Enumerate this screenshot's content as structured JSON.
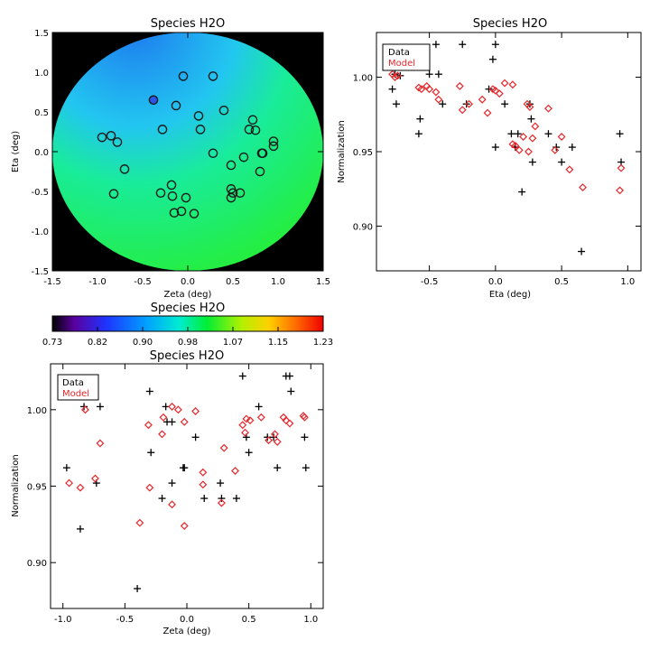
{
  "chart_data": [
    {
      "id": "map",
      "type": "scatter",
      "title": "Species H2O",
      "xlabel": "Zeta (deg)",
      "ylabel": "Eta (deg)",
      "xlim": [
        -1.5,
        1.5
      ],
      "ylim": [
        -1.5,
        1.5
      ],
      "xticks": [
        "-1.5",
        "-1.0",
        "-0.5",
        "0.0",
        "0.5",
        "1.0",
        "1.5"
      ],
      "yticks": [
        "-1.5",
        "-1.0",
        "-0.5",
        "0.0",
        "0.5",
        "1.0",
        "1.5"
      ],
      "background": "model normalization field, circular, blue (top-left) to green (bottom)",
      "points": [
        [
          -0.38,
          0.65
        ],
        [
          -0.05,
          0.95
        ],
        [
          0.28,
          0.95
        ],
        [
          -0.13,
          0.58
        ],
        [
          0.12,
          0.45
        ],
        [
          0.4,
          0.52
        ],
        [
          0.72,
          0.4
        ],
        [
          0.68,
          0.28
        ],
        [
          0.75,
          0.27
        ],
        [
          0.14,
          0.28
        ],
        [
          -0.28,
          0.28
        ],
        [
          -0.85,
          0.2
        ],
        [
          -0.95,
          0.18
        ],
        [
          -0.78,
          0.12
        ],
        [
          0.95,
          0.13
        ],
        [
          0.95,
          0.07
        ],
        [
          0.62,
          -0.07
        ],
        [
          0.48,
          -0.17
        ],
        [
          0.28,
          -0.02
        ],
        [
          0.83,
          -0.02
        ],
        [
          0.82,
          -0.02
        ],
        [
          0.8,
          -0.25
        ],
        [
          -0.7,
          -0.22
        ],
        [
          -0.18,
          -0.42
        ],
        [
          -0.3,
          -0.52
        ],
        [
          -0.17,
          -0.56
        ],
        [
          0.48,
          -0.47
        ],
        [
          0.5,
          -0.52
        ],
        [
          0.58,
          -0.52
        ],
        [
          0.48,
          -0.58
        ],
        [
          -0.82,
          -0.53
        ],
        [
          -0.02,
          -0.58
        ],
        [
          -0.15,
          -0.77
        ],
        [
          -0.07,
          -0.75
        ],
        [
          0.07,
          -0.78
        ]
      ],
      "colorbar": {
        "title": "Species H2O",
        "min": 0.73,
        "max": 1.23,
        "ticks": [
          "0.73",
          "0.82",
          "0.90",
          "0.98",
          "1.07",
          "1.15",
          "1.23"
        ]
      }
    },
    {
      "id": "eta-plot",
      "type": "scatter",
      "title": "Species H2O",
      "xlabel": "Eta (deg)",
      "ylabel": "Normalization",
      "xlim": [
        -0.9,
        1.1
      ],
      "ylim": [
        0.87,
        1.03
      ],
      "xticks": [
        -0.5,
        0.0,
        0.5,
        1.0
      ],
      "yticks": [
        0.9,
        0.95,
        1.0
      ],
      "legend": {
        "position": "top-left",
        "data": "Data",
        "model": "Model"
      },
      "series": [
        {
          "name": "Data",
          "marker": "+",
          "color": "#000000",
          "points": [
            [
              -0.78,
              0.992
            ],
            [
              -0.76,
              1.002
            ],
            [
              -0.75,
              0.982
            ],
            [
              -0.72,
              1.001
            ],
            [
              -0.58,
              0.962
            ],
            [
              -0.57,
              0.972
            ],
            [
              -0.54,
              1.012
            ],
            [
              -0.5,
              1.002
            ],
            [
              -0.45,
              1.022
            ],
            [
              -0.43,
              1.002
            ],
            [
              -0.4,
              0.982
            ],
            [
              -0.25,
              1.022
            ],
            [
              -0.22,
              0.982
            ],
            [
              -0.05,
              0.992
            ],
            [
              -0.02,
              1.012
            ],
            [
              0.0,
              1.022
            ],
            [
              0.0,
              0.953
            ],
            [
              0.07,
              0.982
            ],
            [
              0.12,
              0.962
            ],
            [
              0.15,
              0.953
            ],
            [
              0.17,
              0.962
            ],
            [
              0.2,
              0.923
            ],
            [
              0.26,
              0.982
            ],
            [
              0.27,
              0.972
            ],
            [
              0.28,
              0.943
            ],
            [
              0.4,
              0.962
            ],
            [
              0.46,
              0.953
            ],
            [
              0.5,
              0.943
            ],
            [
              0.58,
              0.953
            ],
            [
              0.65,
              0.883
            ],
            [
              0.94,
              0.962
            ],
            [
              0.95,
              0.943
            ]
          ]
        },
        {
          "name": "Model",
          "marker": "diamond",
          "color": "#e8262a",
          "points": [
            [
              -0.78,
              1.002
            ],
            [
              -0.76,
              1.0
            ],
            [
              -0.74,
              1.001
            ],
            [
              -0.58,
              0.993
            ],
            [
              -0.56,
              0.992
            ],
            [
              -0.52,
              0.994
            ],
            [
              -0.5,
              0.992
            ],
            [
              -0.45,
              0.99
            ],
            [
              -0.43,
              0.985
            ],
            [
              -0.27,
              0.994
            ],
            [
              -0.25,
              0.978
            ],
            [
              -0.2,
              0.982
            ],
            [
              -0.1,
              0.985
            ],
            [
              -0.06,
              0.976
            ],
            [
              -0.02,
              0.992
            ],
            [
              0.0,
              0.991
            ],
            [
              0.03,
              0.989
            ],
            [
              0.07,
              0.996
            ],
            [
              0.13,
              0.995
            ],
            [
              0.13,
              0.955
            ],
            [
              0.15,
              0.954
            ],
            [
              0.18,
              0.951
            ],
            [
              0.21,
              0.96
            ],
            [
              0.24,
              0.982
            ],
            [
              0.25,
              0.95
            ],
            [
              0.26,
              0.98
            ],
            [
              0.28,
              0.959
            ],
            [
              0.3,
              0.967
            ],
            [
              0.4,
              0.979
            ],
            [
              0.45,
              0.951
            ],
            [
              0.5,
              0.96
            ],
            [
              0.56,
              0.938
            ],
            [
              0.66,
              0.926
            ],
            [
              0.94,
              0.924
            ],
            [
              0.95,
              0.939
            ]
          ]
        }
      ]
    },
    {
      "id": "zeta-plot",
      "type": "scatter",
      "title": "Species H2O",
      "xlabel": "Zeta (deg)",
      "ylabel": "Normalization",
      "xlim": [
        -1.1,
        1.1
      ],
      "ylim": [
        0.87,
        1.03
      ],
      "xticks": [
        -1.0,
        -0.5,
        0.0,
        0.5,
        1.0
      ],
      "yticks": [
        0.9,
        0.95,
        1.0
      ],
      "legend": {
        "position": "top-left",
        "data": "Data",
        "model": "Model"
      },
      "series": [
        {
          "name": "Data",
          "marker": "+",
          "color": "#000000",
          "points": [
            [
              -0.97,
              0.962
            ],
            [
              -0.86,
              0.922
            ],
            [
              -0.83,
              1.002
            ],
            [
              -0.73,
              0.952
            ],
            [
              -0.7,
              1.002
            ],
            [
              -0.4,
              0.883
            ],
            [
              -0.3,
              1.012
            ],
            [
              -0.29,
              0.972
            ],
            [
              -0.2,
              0.942
            ],
            [
              -0.17,
              1.002
            ],
            [
              -0.16,
              0.992
            ],
            [
              -0.12,
              0.952
            ],
            [
              -0.12,
              0.992
            ],
            [
              -0.03,
              0.962
            ],
            [
              -0.02,
              0.962
            ],
            [
              0.07,
              0.982
            ],
            [
              0.14,
              0.942
            ],
            [
              0.27,
              0.952
            ],
            [
              0.28,
              0.942
            ],
            [
              0.4,
              0.942
            ],
            [
              0.45,
              1.022
            ],
            [
              0.48,
              0.982
            ],
            [
              0.5,
              0.972
            ],
            [
              0.58,
              1.002
            ],
            [
              0.65,
              0.982
            ],
            [
              0.7,
              0.982
            ],
            [
              0.73,
              0.962
            ],
            [
              0.8,
              1.022
            ],
            [
              0.83,
              1.022
            ],
            [
              0.84,
              1.012
            ],
            [
              0.95,
              0.982
            ],
            [
              0.96,
              0.962
            ]
          ]
        },
        {
          "name": "Model",
          "marker": "diamond",
          "color": "#e8262a",
          "points": [
            [
              -0.95,
              0.952
            ],
            [
              -0.86,
              0.949
            ],
            [
              -0.82,
              1.0
            ],
            [
              -0.74,
              0.955
            ],
            [
              -0.7,
              0.978
            ],
            [
              -0.38,
              0.926
            ],
            [
              -0.31,
              0.99
            ],
            [
              -0.3,
              0.949
            ],
            [
              -0.2,
              0.984
            ],
            [
              -0.19,
              0.995
            ],
            [
              -0.12,
              0.938
            ],
            [
              -0.12,
              1.002
            ],
            [
              -0.07,
              1.0
            ],
            [
              -0.02,
              0.992
            ],
            [
              -0.02,
              0.924
            ],
            [
              0.07,
              0.999
            ],
            [
              0.13,
              0.959
            ],
            [
              0.13,
              0.951
            ],
            [
              0.28,
              0.939
            ],
            [
              0.3,
              0.975
            ],
            [
              0.39,
              0.96
            ],
            [
              0.45,
              0.99
            ],
            [
              0.48,
              0.994
            ],
            [
              0.51,
              0.993
            ],
            [
              0.47,
              0.985
            ],
            [
              0.6,
              0.995
            ],
            [
              0.66,
              0.98
            ],
            [
              0.71,
              0.984
            ],
            [
              0.73,
              0.979
            ],
            [
              0.78,
              0.995
            ],
            [
              0.8,
              0.993
            ],
            [
              0.83,
              0.991
            ],
            [
              0.94,
              0.996
            ],
            [
              0.95,
              0.995
            ]
          ]
        }
      ]
    }
  ]
}
